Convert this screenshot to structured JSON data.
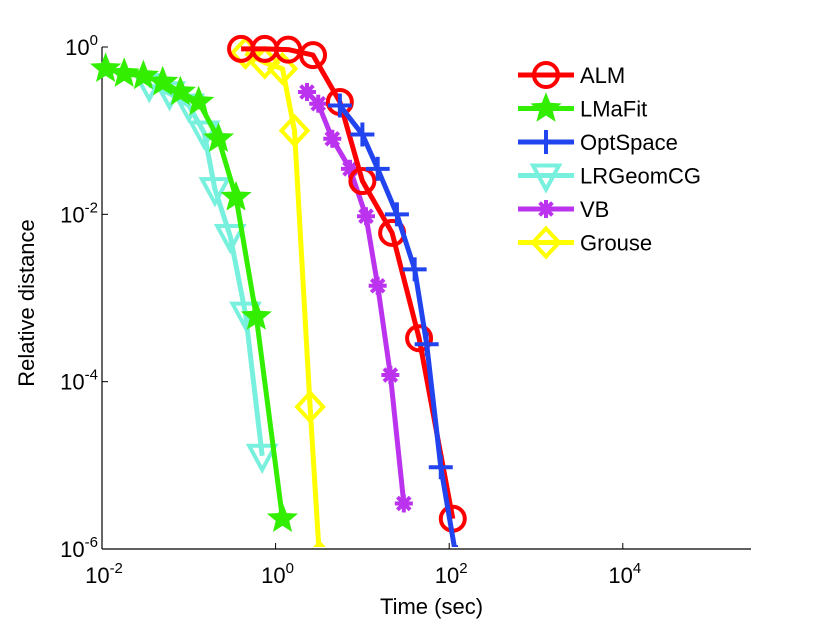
{
  "chart_data": {
    "type": "line",
    "title": "",
    "xlabel": "Time (sec)",
    "ylabel": "Relative distance",
    "xscale": "log",
    "yscale": "log",
    "xlim": [
      0.01,
      300000
    ],
    "ylim": [
      1e-06,
      1
    ],
    "x_ticks": [
      {
        "base": "10",
        "exp": "-2"
      },
      {
        "base": "10",
        "exp": "0"
      },
      {
        "base": "10",
        "exp": "2"
      },
      {
        "base": "10",
        "exp": "4"
      }
    ],
    "y_ticks": [
      {
        "base": "10",
        "exp": "0"
      },
      {
        "base": "10",
        "exp": "-2"
      },
      {
        "base": "10",
        "exp": "-4"
      },
      {
        "base": "10",
        "exp": "-6"
      }
    ],
    "grid": false,
    "legend_position": "top-right",
    "series": [
      {
        "name": "ALM",
        "color": "#ff0000",
        "marker": "circle",
        "x": [
          0.4,
          0.75,
          1.4,
          2.7,
          5.5,
          10,
          22,
          45,
          110
        ],
        "y": [
          0.95,
          0.95,
          0.93,
          0.8,
          0.22,
          0.025,
          0.006,
          0.00033,
          2.3e-06
        ]
      },
      {
        "name": "LMaFit",
        "color": "#33ee00",
        "marker": "star",
        "x": [
          0.011,
          0.018,
          0.03,
          0.05,
          0.08,
          0.13,
          0.22,
          0.35,
          0.6,
          1.2
        ],
        "y": [
          0.55,
          0.48,
          0.45,
          0.38,
          0.29,
          0.22,
          0.08,
          0.016,
          0.0006,
          2.3e-06
        ]
      },
      {
        "name": "OptSpace",
        "color": "#2244ee",
        "marker": "plus",
        "x": [
          5.5,
          10,
          15,
          25,
          40,
          55,
          80,
          120
        ],
        "y": [
          0.2,
          0.09,
          0.035,
          0.01,
          0.0022,
          0.00028,
          9.5e-06,
          8e-07
        ]
      },
      {
        "name": "LRGeomCG",
        "color": "#77f0dd",
        "marker": "triangle-down",
        "x": [
          0.035,
          0.06,
          0.1,
          0.15,
          0.2,
          0.3,
          0.45,
          0.7
        ],
        "y": [
          0.35,
          0.28,
          0.2,
          0.095,
          0.02,
          0.0055,
          0.00065,
          1.3e-05
        ]
      },
      {
        "name": "VB",
        "color": "#bb33ee",
        "marker": "asterisk",
        "x": [
          2.3,
          3.1,
          4.5,
          7.2,
          11,
          15,
          21,
          30
        ],
        "y": [
          0.29,
          0.21,
          0.08,
          0.035,
          0.0095,
          0.0014,
          0.00012,
          3.5e-06
        ]
      },
      {
        "name": "Grouse",
        "color": "#ffff00",
        "marker": "diamond",
        "x": [
          0.45,
          0.75,
          1.2,
          1.65,
          2.5,
          3.2
        ],
        "y": [
          0.85,
          0.65,
          0.55,
          0.1,
          5e-05,
          8e-07
        ]
      }
    ]
  }
}
